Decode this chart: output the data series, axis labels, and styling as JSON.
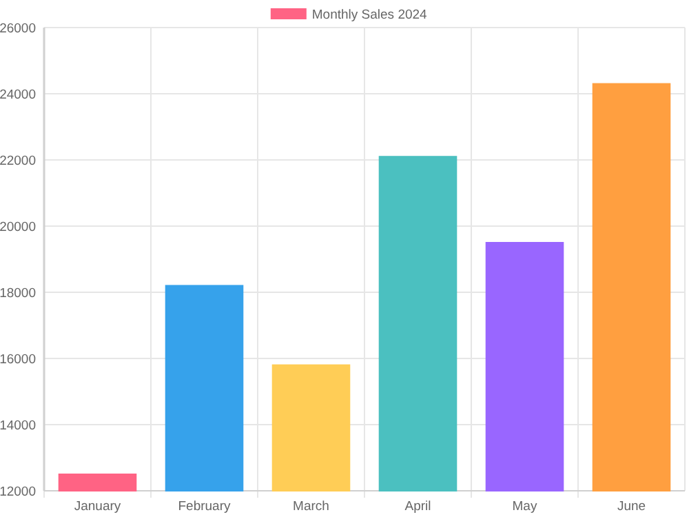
{
  "chart_data": {
    "type": "bar",
    "categories": [
      "January",
      "February",
      "March",
      "April",
      "May",
      "June"
    ],
    "series": [
      {
        "name": "Monthly Sales 2024",
        "color": "#ff6384",
        "colors": [
          "#ff6384",
          "#36a2eb",
          "#ffcd56",
          "#4bc0c0",
          "#9966ff",
          "#ff9f40"
        ],
        "values": [
          12500,
          18200,
          15800,
          22100,
          19500,
          24300
        ]
      }
    ],
    "ylim": [
      12000,
      26000
    ],
    "yticks": [
      12000,
      14000,
      16000,
      18000,
      20000,
      22000,
      24000,
      26000
    ],
    "grid": true,
    "legend": "top"
  }
}
